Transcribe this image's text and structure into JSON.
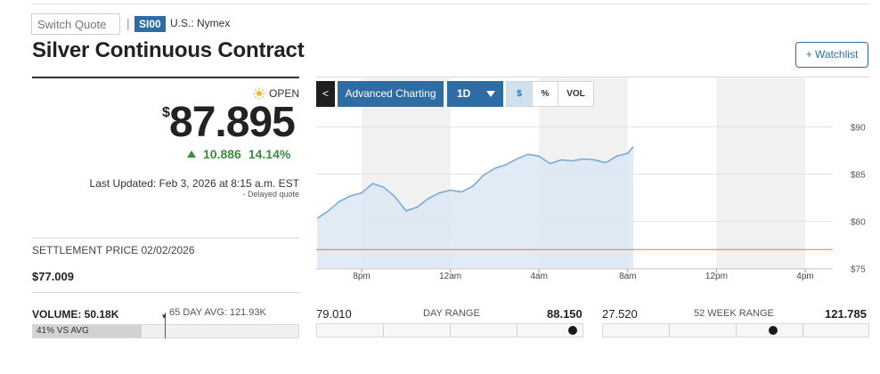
{
  "header": {
    "switch_quote_placeholder": "Switch Quote",
    "separator": "|",
    "ticker": "SI00",
    "exchange": "U.S.: Nymex",
    "title": "Silver Continuous Contract",
    "watchlist_label": "+ Watchlist"
  },
  "quote": {
    "status": "OPEN",
    "currency_symbol": "$",
    "price": "87.895",
    "change": "10.886",
    "change_pct": "14.14%",
    "last_updated": "Last Updated: Feb 3, 2026 at 8:15 a.m. EST",
    "delayed_note": "- Delayed quote",
    "settlement_label": "SETTLEMENT PRICE 02/02/2026",
    "settlement_value": "$77.009"
  },
  "chart_toolbar": {
    "back_label": "<",
    "advanced_label": "Advanced Charting",
    "period_label": "1D",
    "mode_dollar": "$",
    "mode_percent": "%",
    "mode_volume": "VOL",
    "selected_mode": "$"
  },
  "chart_data": {
    "type": "area",
    "x_tick_labels": [
      "8pm",
      "12am",
      "4am",
      "8am",
      "12pm",
      "4pm"
    ],
    "y_tick_labels": [
      "$90",
      "$85",
      "$80",
      "$75"
    ],
    "ylim": [
      75,
      90
    ],
    "previous_close": 77.009,
    "series": [
      {
        "x": [
          "6:00pm",
          "6:30pm",
          "7:00pm",
          "7:30pm",
          "8:00pm",
          "8:30pm",
          "9:00pm",
          "9:30pm",
          "10:00pm",
          "10:30pm",
          "11:00pm",
          "11:30pm",
          "12:00am",
          "12:30am",
          "1:00am",
          "1:30am",
          "2:00am",
          "2:30am",
          "3:00am",
          "3:30am",
          "4:00am",
          "4:30am",
          "5:00am",
          "5:30am",
          "6:00am",
          "6:30am",
          "7:00am",
          "7:30am",
          "8:00am",
          "8:15am"
        ],
        "values": [
          80.3,
          81.1,
          82.1,
          82.7,
          83.0,
          84.0,
          83.6,
          82.6,
          81.1,
          81.5,
          82.4,
          83.0,
          83.3,
          83.1,
          83.7,
          84.9,
          85.6,
          86.0,
          86.6,
          87.1,
          86.9,
          86.1,
          86.5,
          86.4,
          86.6,
          86.5,
          86.2,
          86.9,
          87.2,
          87.9
        ]
      }
    ],
    "colors": {
      "line": "#7aaad6",
      "area": "#dbe8f3",
      "prev_close": "#e07b39"
    }
  },
  "stats": {
    "volume_label": "VOLUME: 50.18K",
    "avg_label": "65 DAY AVG: 121.93K",
    "vs_avg_label": "41% VS AVG",
    "vs_avg_fraction": 0.41,
    "day_range": {
      "low": "79.010",
      "title": "DAY RANGE",
      "high": "88.150",
      "position": 0.96
    },
    "week52_range": {
      "low": "27.520",
      "title": "52 WEEK RANGE",
      "high": "121.785",
      "position": 0.64
    }
  },
  "colors": {
    "accent": "#2e6da4",
    "positive": "#3d8b3d"
  },
  "icons": {
    "status_icon": "sun-icon"
  }
}
